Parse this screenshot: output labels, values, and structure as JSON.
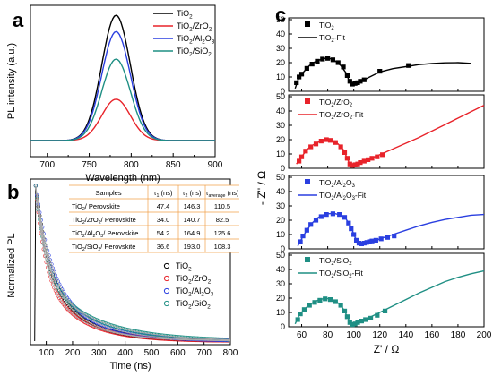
{
  "panel_letters": [
    "a",
    "b",
    "c"
  ],
  "chart_data": [
    {
      "panel": "a",
      "type": "line",
      "xlabel": "Wavelength (nm)",
      "ylabel": "PL intensity (a.u.)",
      "xlim": [
        680,
        900
      ],
      "xticks": [
        700,
        750,
        800,
        850,
        900
      ],
      "y_ticks_labeled": false,
      "legend_position": "top-right",
      "series": [
        {
          "name": "TiO2",
          "legend": [
            "TiO",
            "2",
            ""
          ],
          "color": "#000000",
          "peak_x": 782,
          "peak": 1.0,
          "baseline": 0.0
        },
        {
          "name": "TiO2/ZrO2",
          "legend": [
            "TiO",
            "2",
            "/ZrO",
            "2",
            ""
          ],
          "color": "#e8232a",
          "peak_x": 782,
          "peak": 0.33,
          "baseline": 0.0
        },
        {
          "name": "TiO2/Al2O3",
          "legend": [
            "TiO",
            "2",
            "/Al",
            "2",
            "O",
            "3",
            ""
          ],
          "color": "#2a3fe0",
          "peak_x": 782,
          "peak": 0.87,
          "baseline": 0.0
        },
        {
          "name": "TiO2/SiO2",
          "legend": [
            "TiO",
            "2",
            "/SiO",
            "2",
            ""
          ],
          "color": "#1f8f84",
          "peak_x": 782,
          "peak": 0.65,
          "baseline": 0.0
        }
      ]
    },
    {
      "panel": "b",
      "type": "scatter",
      "xlabel": "Time (ns)",
      "ylabel": "Normalized PL",
      "xlim": [
        40,
        800
      ],
      "xticks": [
        100,
        200,
        300,
        400,
        500,
        600,
        700,
        800
      ],
      "y_ticks_labeled": false,
      "legend_position": "bottom-right",
      "series": [
        {
          "name": "TiO2",
          "legend": [
            "TiO",
            "2",
            ""
          ],
          "color": "#000000",
          "tau1": 47.4,
          "tau2": 146.3
        },
        {
          "name": "TiO2/ZrO2",
          "legend": [
            "TiO",
            "2",
            "/ZrO",
            "2",
            ""
          ],
          "color": "#e8232a",
          "tau1": 34.0,
          "tau2": 140.7
        },
        {
          "name": "TiO2/Al2O3",
          "legend": [
            "TiO",
            "2",
            "/Al",
            "2",
            "O",
            "3",
            ""
          ],
          "color": "#2a3fe0",
          "tau1": 54.2,
          "tau2": 164.9
        },
        {
          "name": "TiO2/SiO2",
          "legend": [
            "TiO",
            "2",
            "/SiO",
            "2",
            ""
          ],
          "color": "#1f8f84",
          "tau1": 36.6,
          "tau2": 193.0
        }
      ],
      "table": {
        "headers": [
          [
            "Samples"
          ],
          [
            "τ",
            "1",
            " (ns)"
          ],
          [
            "τ",
            "2",
            " (ns)"
          ],
          [
            "τ",
            "average",
            " (ns)"
          ]
        ],
        "rows": [
          {
            "sample": [
              "TiO",
              "2",
              "/ Perovskite"
            ],
            "tau1": "47.4",
            "tau2": "146.3",
            "tau_avg": "110.5"
          },
          {
            "sample": [
              "TiO",
              "2",
              "/ZrO",
              "2",
              "/ Perovskite"
            ],
            "tau1": "34.0",
            "tau2": "140.7",
            "tau_avg": "82.5"
          },
          {
            "sample": [
              "TiO",
              "2",
              "/Al",
              "2",
              "O",
              "3",
              "/ Perovskite"
            ],
            "tau1": "54.2",
            "tau2": "164.9",
            "tau_avg": "125.6"
          },
          {
            "sample": [
              "TiO",
              "2",
              "/SiO",
              "2",
              "/ Perovskite"
            ],
            "tau1": "36.6",
            "tau2": "193.0",
            "tau_avg": "108.3"
          }
        ]
      }
    },
    {
      "panel": "c",
      "type": "scatter",
      "xlabel": "Z' / Ω",
      "ylabel": "- Z'' / Ω",
      "xlim": [
        50,
        200
      ],
      "xticks": [
        60,
        80,
        100,
        120,
        140,
        160,
        180,
        200
      ],
      "ylim": [
        0,
        50
      ],
      "yticks": [
        0,
        10,
        20,
        30,
        40,
        50
      ],
      "legend_position": "top-left",
      "subplots": [
        {
          "name": "TiO2",
          "marker": "square",
          "color": "#000000",
          "legend": [
            [
              "TiO",
              "2",
              ""
            ],
            [
              "TiO",
              "2",
              "-Fit"
            ]
          ],
          "points": [
            [
              56,
              6
            ],
            [
              58,
              10
            ],
            [
              60,
              12
            ],
            [
              64,
              16
            ],
            [
              68,
              19
            ],
            [
              72,
              21
            ],
            [
              76,
              22.5
            ],
            [
              80,
              23
            ],
            [
              84,
              22
            ],
            [
              88,
              20
            ],
            [
              92,
              17
            ],
            [
              95,
              11
            ],
            [
              97,
              7
            ],
            [
              99,
              5
            ],
            [
              101,
              5.5
            ],
            [
              103,
              6
            ],
            [
              105,
              7
            ],
            [
              108,
              8
            ],
            [
              120,
              14
            ],
            [
              142,
              18
            ]
          ],
          "fit": [
            [
              55,
              2
            ],
            [
              58,
              10
            ],
            [
              62,
              14
            ],
            [
              66,
              18
            ],
            [
              70,
              20.5
            ],
            [
              74,
              22
            ],
            [
              78,
              23
            ],
            [
              82,
              22.8
            ],
            [
              86,
              21
            ],
            [
              90,
              18
            ],
            [
              94,
              13
            ],
            [
              97,
              6
            ],
            [
              99,
              4.6
            ],
            [
              102,
              5.6
            ],
            [
              106,
              7.5
            ],
            [
              110,
              9
            ],
            [
              120,
              13.5
            ],
            [
              130,
              15.8
            ],
            [
              140,
              17.2
            ],
            [
              150,
              18.6
            ],
            [
              160,
              19.4
            ],
            [
              170,
              19.9
            ],
            [
              180,
              20
            ],
            [
              190,
              19.5
            ]
          ]
        },
        {
          "name": "TiO2/ZrO2",
          "marker": "square",
          "color": "#e8232a",
          "legend": [
            [
              "TiO",
              "2",
              "/ZrO",
              "2",
              ""
            ],
            [
              "TiO",
              "2",
              "/ZrO",
              "2",
              "-Fit"
            ]
          ],
          "points": [
            [
              58,
              5
            ],
            [
              60,
              8
            ],
            [
              63,
              12
            ],
            [
              67,
              15
            ],
            [
              71,
              17
            ],
            [
              75,
              19
            ],
            [
              79,
              20
            ],
            [
              82,
              19.5
            ],
            [
              86,
              18
            ],
            [
              90,
              15
            ],
            [
              93,
              11
            ],
            [
              95,
              7
            ],
            [
              97,
              3
            ],
            [
              99,
              2
            ],
            [
              101,
              2.5
            ],
            [
              103,
              3
            ],
            [
              105,
              4
            ],
            [
              108,
              5
            ],
            [
              111,
              6
            ],
            [
              114,
              7
            ],
            [
              118,
              8
            ],
            [
              122,
              9.5
            ]
          ],
          "fit": [
            [
              56,
              3
            ],
            [
              60,
              8
            ],
            [
              64,
              13
            ],
            [
              68,
              16
            ],
            [
              72,
              18
            ],
            [
              76,
              19.5
            ],
            [
              80,
              20
            ],
            [
              84,
              19
            ],
            [
              88,
              17
            ],
            [
              92,
              13
            ],
            [
              95,
              7
            ],
            [
              97,
              2.5
            ],
            [
              100,
              2.5
            ],
            [
              105,
              4
            ],
            [
              110,
              5.8
            ],
            [
              120,
              9.5
            ],
            [
              130,
              13.5
            ],
            [
              140,
              17.5
            ],
            [
              150,
              21.5
            ],
            [
              160,
              26
            ],
            [
              170,
              30.5
            ],
            [
              180,
              35
            ],
            [
              190,
              39.5
            ],
            [
              200,
              44
            ]
          ]
        },
        {
          "name": "TiO2/Al2O3",
          "marker": "square",
          "color": "#2a3fe0",
          "legend": [
            [
              "TiO",
              "2",
              "/Al",
              "2",
              "O",
              "3",
              ""
            ],
            [
              "TiO",
              "2",
              "/Al",
              "2",
              "O",
              "3",
              "-Fit"
            ]
          ],
          "points": [
            [
              59,
              5
            ],
            [
              61,
              9
            ],
            [
              64,
              13
            ],
            [
              67,
              17
            ],
            [
              71,
              20
            ],
            [
              75,
              22.5
            ],
            [
              79,
              24
            ],
            [
              84,
              24.5
            ],
            [
              89,
              24
            ],
            [
              93,
              22
            ],
            [
              96,
              18
            ],
            [
              98,
              14
            ],
            [
              100,
              10
            ],
            [
              102,
              6
            ],
            [
              104,
              4
            ],
            [
              106,
              3.5
            ],
            [
              108,
              4
            ],
            [
              110,
              4.5
            ],
            [
              112,
              5
            ],
            [
              114,
              5.5
            ],
            [
              117,
              6
            ],
            [
              121,
              7
            ],
            [
              126,
              8
            ],
            [
              131,
              9
            ]
          ],
          "fit": [
            [
              57,
              2
            ],
            [
              60,
              7
            ],
            [
              64,
              13
            ],
            [
              68,
              18
            ],
            [
              72,
              21.5
            ],
            [
              76,
              23.5
            ],
            [
              80,
              24.5
            ],
            [
              85,
              24.8
            ],
            [
              90,
              23.5
            ],
            [
              94,
              21
            ],
            [
              98,
              15
            ],
            [
              101,
              8
            ],
            [
              104,
              4
            ],
            [
              108,
              3.8
            ],
            [
              114,
              5.2
            ],
            [
              120,
              7
            ],
            [
              130,
              10
            ],
            [
              140,
              13
            ],
            [
              150,
              16
            ],
            [
              160,
              18.5
            ],
            [
              170,
              20.5
            ],
            [
              180,
              22
            ],
            [
              190,
              23.5
            ],
            [
              200,
              24
            ]
          ]
        },
        {
          "name": "TiO2/SiO2",
          "marker": "square",
          "color": "#1f8f84",
          "legend": [
            [
              "TiO",
              "2",
              "/SiO",
              "2",
              ""
            ],
            [
              "TiO",
              "2",
              "/SiO",
              "2",
              "-Fit"
            ]
          ],
          "points": [
            [
              57,
              5
            ],
            [
              59,
              9
            ],
            [
              62,
              12
            ],
            [
              66,
              15
            ],
            [
              70,
              17
            ],
            [
              74,
              18.5
            ],
            [
              78,
              19.5
            ],
            [
              82,
              19
            ],
            [
              86,
              17.5
            ],
            [
              90,
              15
            ],
            [
              93,
              11
            ],
            [
              95,
              7
            ],
            [
              97,
              3
            ],
            [
              99,
              1.5
            ],
            [
              101,
              2
            ],
            [
              103,
              3
            ],
            [
              106,
              4
            ],
            [
              109,
              5
            ],
            [
              113,
              6
            ],
            [
              118,
              8
            ],
            [
              124,
              11
            ]
          ],
          "fit": [
            [
              55,
              2
            ],
            [
              58,
              8
            ],
            [
              62,
              12
            ],
            [
              66,
              15.5
            ],
            [
              70,
              17.5
            ],
            [
              74,
              19
            ],
            [
              78,
              19.8
            ],
            [
              82,
              19.5
            ],
            [
              86,
              18
            ],
            [
              90,
              15
            ],
            [
              93,
              11
            ],
            [
              96,
              5
            ],
            [
              98,
              1.5
            ],
            [
              101,
              1.8
            ],
            [
              106,
              4
            ],
            [
              112,
              6.5
            ],
            [
              120,
              10
            ],
            [
              130,
              14.5
            ],
            [
              140,
              19
            ],
            [
              150,
              23.5
            ],
            [
              160,
              27.5
            ],
            [
              170,
              31.5
            ],
            [
              180,
              34.5
            ],
            [
              190,
              37
            ],
            [
              200,
              39
            ]
          ]
        }
      ]
    }
  ]
}
